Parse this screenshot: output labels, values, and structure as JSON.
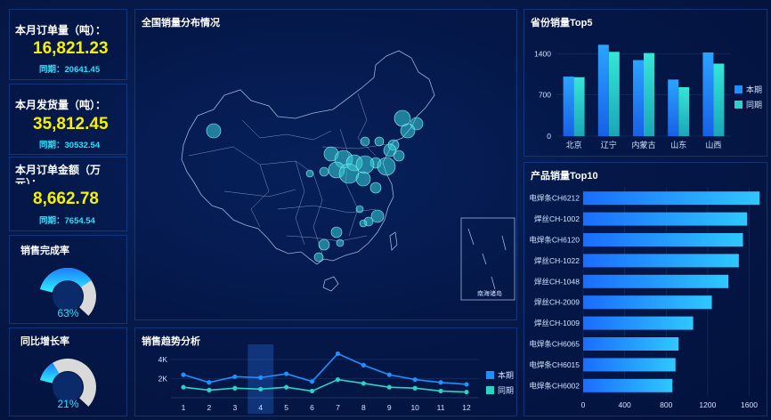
{
  "kpis": [
    {
      "label": "本月订单量（吨）：",
      "value": "16,821.23",
      "sub": "同期：20641.45"
    },
    {
      "label": "本月发货量（吨）：",
      "value": "35,812.45",
      "sub": "同期：30532.54"
    },
    {
      "label": "本月订单金额（万元）：",
      "value": "8,662.78",
      "sub": "同期：7654.54"
    }
  ],
  "gauges": [
    {
      "label": "销售完成率",
      "value": "63%",
      "fraction": 0.63
    },
    {
      "label": "同比增长率",
      "value": "21%",
      "fraction": 0.21
    }
  ],
  "map": {
    "title": "全国销量分布情况",
    "inset_label": "南海诸岛"
  },
  "colors": {
    "current": "#1e90ff",
    "previous": "#2ad3c6",
    "kpi_value": "#f7f000",
    "kpi_sub": "#27e3ff"
  },
  "chart_data": [
    {
      "type": "bar",
      "title": "省份销量Top5",
      "categories": [
        "北京",
        "辽宁",
        "内蒙古",
        "山东",
        "山西"
      ],
      "series": [
        {
          "name": "本期",
          "values": [
            1010,
            1550,
            1290,
            960,
            1420
          ]
        },
        {
          "name": "同期",
          "values": [
            1000,
            1430,
            1410,
            830,
            1230
          ]
        }
      ],
      "yticks": [
        "0",
        "700",
        "1400"
      ],
      "ylim": [
        0,
        1600
      ],
      "legend": "right"
    },
    {
      "type": "bar",
      "orientation": "horizontal",
      "title": "产品销量Top10",
      "categories": [
        "电焊条CH6212",
        "焊丝CH-1002",
        "电焊条CH6120",
        "焊丝CH-1022",
        "焊丝CH-1048",
        "焊丝CH-2009",
        "焊丝CH-1009",
        "电焊条CH6065",
        "电焊条CH6015",
        "电焊条CH6002"
      ],
      "values": [
        1700,
        1580,
        1540,
        1500,
        1400,
        1240,
        1060,
        920,
        890,
        860
      ],
      "xticks": [
        "0",
        "400",
        "800",
        "1200",
        "1600"
      ],
      "xlim": [
        0,
        1750
      ]
    },
    {
      "type": "line",
      "title": "销售趋势分析",
      "x": [
        "1",
        "2",
        "3",
        "4",
        "5",
        "6",
        "7",
        "8",
        "9",
        "10",
        "11",
        "12"
      ],
      "series": [
        {
          "name": "本期",
          "values": [
            2400,
            1600,
            2200,
            2100,
            2500,
            1700,
            4600,
            3400,
            2400,
            1900,
            1600,
            1400
          ]
        },
        {
          "name": "同期",
          "values": [
            1100,
            800,
            1000,
            900,
            1100,
            700,
            1900,
            1500,
            1100,
            1000,
            700,
            600
          ]
        }
      ],
      "yticks": [
        "2K",
        "4K"
      ],
      "ylim": [
        0,
        5200
      ],
      "legend": "right",
      "highlight_x": "4"
    }
  ]
}
